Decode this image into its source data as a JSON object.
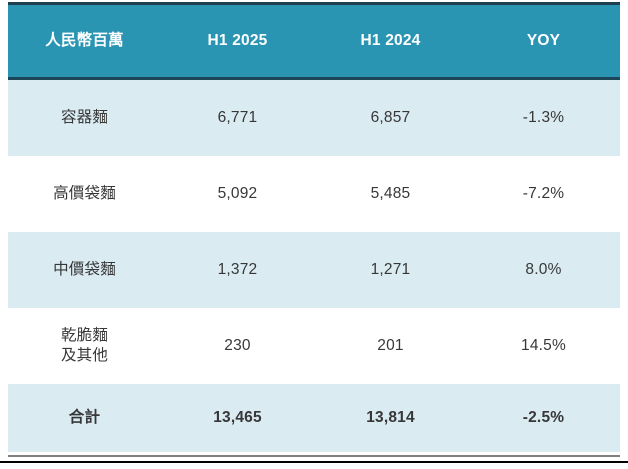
{
  "table": {
    "unit_label": "人民幣百萬",
    "columns": [
      "H1 2025",
      "H1 2024",
      "YOY"
    ],
    "rows": [
      {
        "label": "容器麵",
        "h1_2025": "6,771",
        "h1_2024": "6,857",
        "yoy": "-1.3%"
      },
      {
        "label": "高價袋麵",
        "h1_2025": "5,092",
        "h1_2024": "5,485",
        "yoy": "-7.2%"
      },
      {
        "label": "中價袋麵",
        "h1_2025": "1,372",
        "h1_2024": "1,271",
        "yoy": "8.0%"
      },
      {
        "label": "乾脆麵\n及其他",
        "h1_2025": "230",
        "h1_2024": "201",
        "yoy": "14.5%"
      }
    ],
    "total": {
      "label": "合計",
      "h1_2025": "13,465",
      "h1_2024": "13,814",
      "yoy": "-2.5%"
    }
  },
  "colors": {
    "header_bg": "#2A95B3",
    "header_text": "#FFFFFF",
    "header_border": "#1C4557",
    "row_alt_bg": "#DAEBF2",
    "row_bg": "#FFFFFF",
    "body_text": "#373737",
    "bottom_gray_line": "#808080",
    "bottom_black_line": "#000000"
  }
}
